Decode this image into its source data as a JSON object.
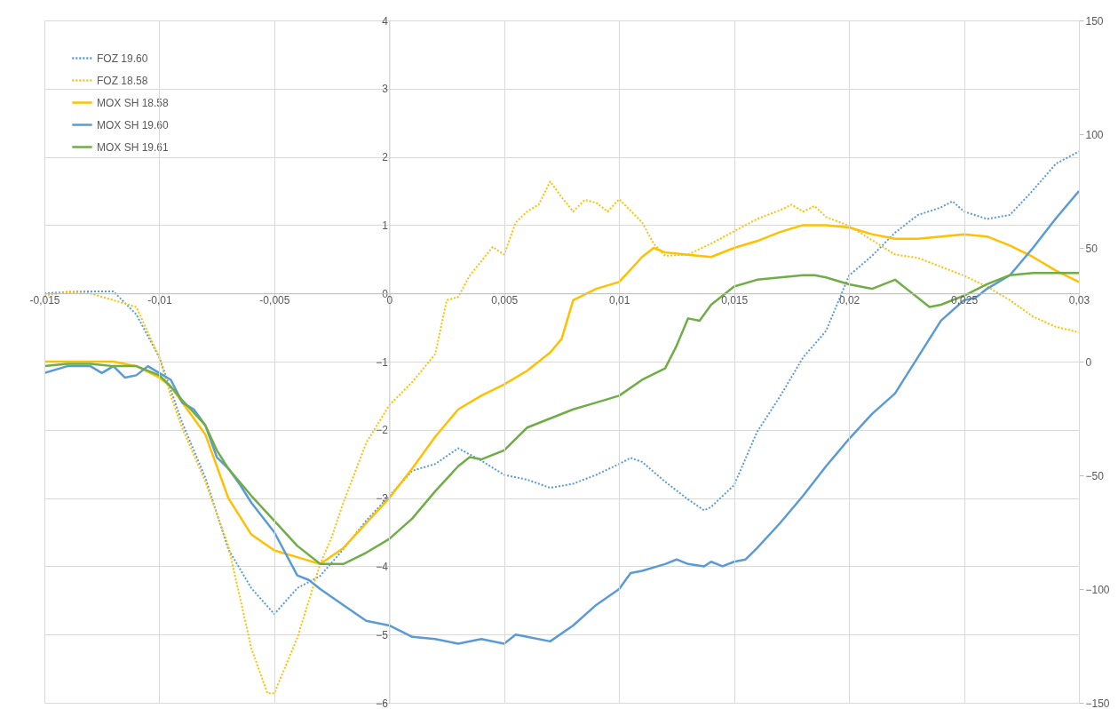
{
  "chart_data": {
    "type": "line",
    "xlim": [
      -0.015,
      0.03
    ],
    "xticks": [
      {
        "value": -0.015,
        "label": "-0,015"
      },
      {
        "value": -0.01,
        "label": "-0,01"
      },
      {
        "value": -0.005,
        "label": "-0,005"
      },
      0,
      {
        "value": 0.005,
        "label": "0,005"
      },
      {
        "value": 0.01,
        "label": "0,01"
      },
      {
        "value": 0.015,
        "label": "0,015"
      },
      {
        "value": 0.02,
        "label": "0,02"
      },
      {
        "value": 0.025,
        "label": "0,025"
      },
      {
        "value": 0.03,
        "label": "0,03"
      }
    ],
    "ylim": [
      -6,
      4
    ],
    "yticks": [
      -6,
      -5,
      -4,
      -3,
      -2,
      -1,
      0,
      1,
      2,
      3,
      4
    ],
    "y2lim": [
      -150,
      150
    ],
    "y2ticks": [
      -150,
      -100,
      -50,
      0,
      50,
      100,
      150
    ],
    "grid": true,
    "legend": "top left",
    "series": [
      {
        "name": "FOZ 19.60",
        "color": "#5b9bd5",
        "line_style": "dotted",
        "x": [
          -0.015,
          -0.014,
          -0.013,
          -0.012,
          -0.011,
          -0.01,
          -0.009,
          -0.008,
          -0.007,
          -0.006,
          -0.005,
          -0.004,
          -0.003,
          -0.002,
          -0.001,
          0,
          0.001,
          0.002,
          0.003,
          0.004,
          0.005,
          0.006,
          0.007,
          0.008,
          0.009,
          0.01,
          0.0105,
          0.011,
          0.012,
          0.013,
          0.0137,
          0.014,
          0.015,
          0.016,
          0.017,
          0.018,
          0.019,
          0.02,
          0.021,
          0.022,
          0.023,
          0.024,
          0.0245,
          0.025,
          0.026,
          0.027,
          0.028,
          0.029,
          0.03
        ],
        "values": [
          0,
          0.02,
          0.03,
          0.03,
          -0.31,
          -0.94,
          -1.9,
          -2.7,
          -3.75,
          -4.32,
          -4.7,
          -4.32,
          -4.14,
          -3.75,
          -3.33,
          -2.97,
          -2.6,
          -2.5,
          -2.27,
          -2.45,
          -2.66,
          -2.73,
          -2.85,
          -2.79,
          -2.66,
          -2.5,
          -2.41,
          -2.47,
          -2.76,
          -3.02,
          -3.18,
          -3.13,
          -2.81,
          -2.03,
          -1.51,
          -0.94,
          -0.55,
          0.26,
          0.55,
          0.89,
          1.15,
          1.26,
          1.35,
          1.2,
          1.09,
          1.15,
          1.51,
          1.9,
          2.08
        ]
      },
      {
        "name": "FOZ 18.58",
        "color": "#ffc000",
        "line_style": "dotted",
        "x": [
          -0.015,
          -0.014,
          -0.013,
          -0.012,
          -0.011,
          -0.01,
          -0.0095,
          -0.009,
          -0.008,
          -0.007,
          -0.006,
          -0.0053,
          -0.005,
          -0.004,
          -0.003,
          -0.0025,
          -0.002,
          -0.001,
          0,
          0.001,
          0.002,
          0.0025,
          0.003,
          0.0035,
          0.004,
          0.0045,
          0.005,
          0.0055,
          0.006,
          0.0065,
          0.007,
          0.0075,
          0.008,
          0.0085,
          0.009,
          0.0095,
          0.01,
          0.011,
          0.0115,
          0.012,
          0.013,
          0.014,
          0.015,
          0.016,
          0.017,
          0.0175,
          0.018,
          0.0185,
          0.019,
          0.02,
          0.021,
          0.022,
          0.023,
          0.024,
          0.025,
          0.026,
          0.027,
          0.028,
          0.029,
          0.03
        ],
        "values": [
          -0.03,
          0.02,
          0,
          -0.1,
          -0.2,
          -0.94,
          -1.51,
          -1.98,
          -2.76,
          -3.7,
          -5.2,
          -5.86,
          -5.86,
          -5.05,
          -3.96,
          -3.57,
          -3.07,
          -2.19,
          -1.64,
          -1.3,
          -0.89,
          -0.1,
          -0.05,
          0.26,
          0.47,
          0.68,
          0.57,
          1.04,
          1.2,
          1.3,
          1.64,
          1.41,
          1.2,
          1.37,
          1.33,
          1.2,
          1.38,
          1.04,
          0.73,
          0.55,
          0.57,
          0.73,
          0.91,
          1.09,
          1.22,
          1.3,
          1.2,
          1.28,
          1.12,
          0.99,
          0.78,
          0.57,
          0.52,
          0.39,
          0.26,
          0.1,
          -0.1,
          -0.34,
          -0.49,
          -0.57
        ]
      },
      {
        "name": "MOX SH 18.58",
        "color": "#ffc000",
        "line_style": "solid",
        "axis": "y2",
        "x": [
          -0.015,
          -0.014,
          -0.013,
          -0.012,
          -0.011,
          -0.01,
          -0.0095,
          -0.009,
          -0.008,
          -0.007,
          -0.006,
          -0.005,
          -0.004,
          -0.003,
          -0.002,
          -0.001,
          0,
          0.001,
          0.002,
          0.003,
          0.004,
          0.005,
          0.006,
          0.007,
          0.0075,
          0.008,
          0.009,
          0.01,
          0.011,
          0.0115,
          0.012,
          0.013,
          0.014,
          0.015,
          0.016,
          0.017,
          0.018,
          0.019,
          0.02,
          0.021,
          0.022,
          0.023,
          0.024,
          0.025,
          0.026,
          0.027,
          0.028,
          0.029,
          0.03
        ],
        "values": [
          0,
          0,
          0,
          0,
          -2,
          -7,
          -11,
          -18,
          -32,
          -60,
          -76,
          -83,
          -86,
          -89,
          -82,
          -71,
          -60,
          -47,
          -33,
          -21,
          -15,
          -10,
          -4,
          4,
          10,
          27,
          32,
          35,
          46,
          50,
          48,
          47,
          46,
          50,
          53,
          57,
          60,
          60,
          59,
          56,
          54,
          54,
          55,
          56,
          55,
          51,
          46,
          40,
          35
        ]
      },
      {
        "name": "MOX SH 19.60",
        "color": "#5b9bd5",
        "line_style": "solid",
        "axis": "y2",
        "x": [
          -0.015,
          -0.014,
          -0.013,
          -0.0125,
          -0.012,
          -0.0115,
          -0.011,
          -0.0105,
          -0.01,
          -0.0095,
          -0.009,
          -0.0085,
          -0.008,
          -0.0075,
          -0.007,
          -0.0065,
          -0.006,
          -0.005,
          -0.004,
          -0.0035,
          -0.003,
          -0.002,
          -0.001,
          0,
          0.001,
          0.002,
          0.003,
          0.004,
          0.005,
          0.0055,
          0.006,
          0.007,
          0.008,
          0.009,
          0.01,
          0.0105,
          0.011,
          0.012,
          0.0125,
          0.013,
          0.0137,
          0.014,
          0.0145,
          0.015,
          0.0155,
          0.016,
          0.017,
          0.018,
          0.019,
          0.02,
          0.021,
          0.022,
          0.023,
          0.024,
          0.025,
          0.0255,
          0.026,
          0.027,
          0.028,
          0.029,
          0.03
        ],
        "values": [
          -5,
          -2,
          -2,
          -5,
          -2,
          -7,
          -6,
          -2,
          -5,
          -8,
          -18,
          -21,
          -28,
          -42,
          -47,
          -54,
          -62,
          -75,
          -94,
          -96,
          -100,
          -107,
          -114,
          -116,
          -121,
          -122,
          -124,
          -122,
          -124,
          -120,
          -121,
          -123,
          -116,
          -107,
          -100,
          -93,
          -92,
          -89,
          -87,
          -89,
          -90,
          -88,
          -90,
          -88,
          -87,
          -82,
          -71,
          -59,
          -46,
          -34,
          -23,
          -14,
          2,
          18,
          27,
          28,
          32,
          38,
          50,
          63,
          75
        ]
      },
      {
        "name": "MOX SH 19.61",
        "color": "#70ad47",
        "line_style": "solid",
        "axis": "y2",
        "x": [
          -0.015,
          -0.014,
          -0.013,
          -0.012,
          -0.011,
          -0.01,
          -0.0095,
          -0.009,
          -0.008,
          -0.0075,
          -0.007,
          -0.006,
          -0.005,
          -0.004,
          -0.003,
          -0.002,
          -0.001,
          0,
          0.001,
          0.002,
          0.003,
          0.0035,
          0.004,
          0.005,
          0.006,
          0.007,
          0.008,
          0.009,
          0.01,
          0.011,
          0.012,
          0.0125,
          0.013,
          0.0135,
          0.014,
          0.015,
          0.016,
          0.017,
          0.018,
          0.0185,
          0.019,
          0.02,
          0.021,
          0.022,
          0.023,
          0.0235,
          0.024,
          0.025,
          0.026,
          0.027,
          0.028,
          0.029,
          0.03
        ],
        "values": [
          -2,
          -1,
          -1,
          -2,
          -2,
          -6,
          -11,
          -17,
          -28,
          -39,
          -47,
          -59,
          -70,
          -81,
          -89,
          -89,
          -84,
          -78,
          -69,
          -57,
          -46,
          -42,
          -43,
          -39,
          -29,
          -25,
          -21,
          -18,
          -15,
          -8,
          -3,
          7,
          19,
          18,
          25,
          33,
          36,
          37,
          38,
          38,
          37,
          34,
          32,
          36,
          28,
          24,
          25,
          29,
          34,
          38,
          39,
          39,
          39
        ]
      }
    ]
  }
}
